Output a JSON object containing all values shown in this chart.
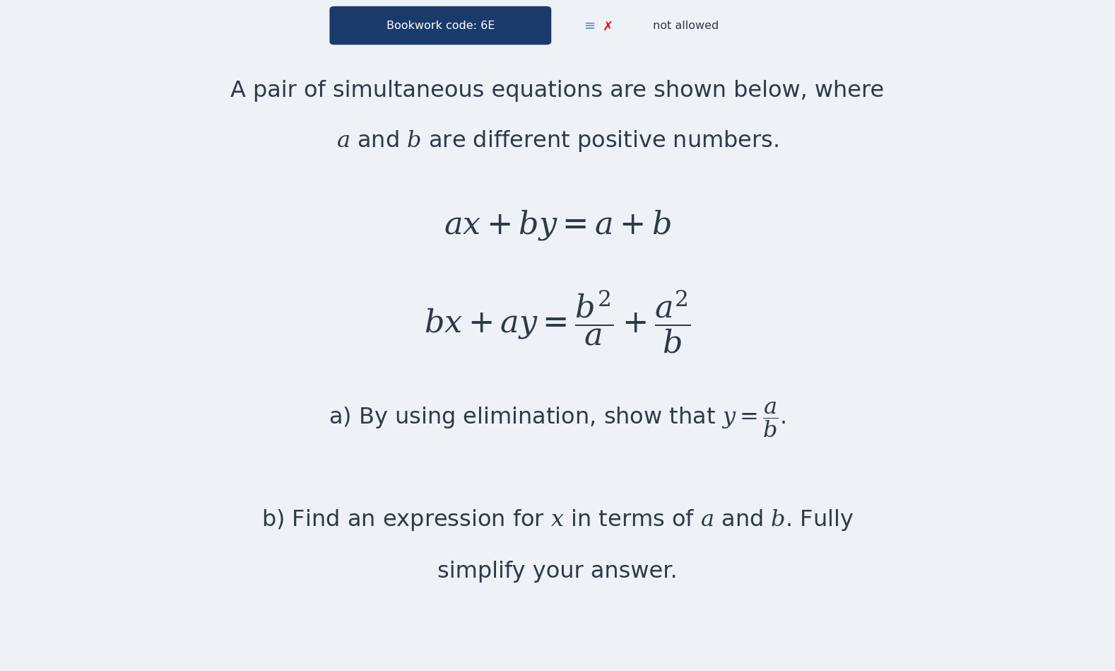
{
  "bg_color": "#eef2f7",
  "text_color": "#2d3a4a",
  "bookwork_label": "Bookwork code: 6E",
  "bookwork_bg": "#1a3a6b",
  "bookwork_text_color": "#ffffff",
  "not_allowed_text": "not allowed",
  "line1": "A pair of simultaneous equations are shown below, where",
  "line2": "$\\it{a}$ and $\\it{b}$ are different positive numbers.",
  "eq1": "$ax + by = a + b$",
  "eq2": "$bx + ay = \\dfrac{b^2}{a} + \\dfrac{a^2}{b}$",
  "part_a": "a) By using elimination, show that $y = \\dfrac{a}{b}$.",
  "part_b1": "b) Find an expression for $x$ in terms of $\\it{a}$ and $\\it{b}$. Fully",
  "part_b2": "simplify your answer.",
  "figsize": [
    15.78,
    9.49
  ],
  "dpi": 100
}
